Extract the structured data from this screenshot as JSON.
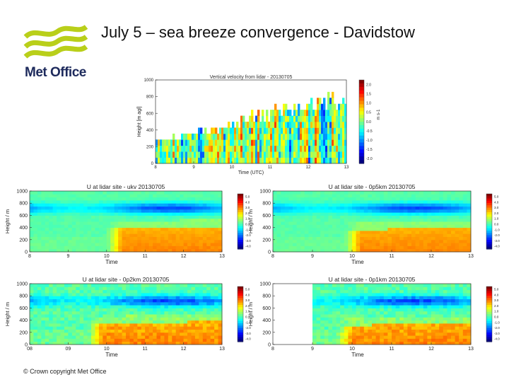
{
  "slide": {
    "title": "July 5 – sea breeze convergence - Davidstow",
    "logo_text": "Met Office",
    "copyright": "© Crown copyright   Met Office",
    "accent_color": "#b9cf1a",
    "brand_color": "#1d2a5c"
  },
  "chart_data": [
    {
      "id": "vertical-velocity",
      "type": "heatmap",
      "title": "Vertical velocity from lidar - 20130705",
      "xlabel": "Time (UTC)",
      "ylabel": "Height [m agl]",
      "x_ticks": [
        "8",
        "9",
        "10",
        "11",
        "12",
        "13"
      ],
      "x_range": [
        8,
        13
      ],
      "y_ticks": [
        "1000",
        "800",
        "600",
        "400",
        "200",
        "0"
      ],
      "y_range": [
        0,
        1000
      ],
      "colorbar_label": "m s-1",
      "colorbar_ticks": [
        "2.0",
        "1.5",
        "1.0",
        "0.5",
        "0.0",
        "-0.5",
        "-1.0",
        "-1.5",
        "-2.0"
      ],
      "colorbar_range": [
        -2.0,
        2.0
      ],
      "top_of_data_m": [
        260,
        300,
        360,
        420,
        480,
        560,
        610,
        650,
        690,
        740
      ],
      "top_of_data_at_time": [
        8.2,
        8.7,
        9.2,
        9.7,
        10.2,
        10.7,
        11.2,
        11.7,
        12.2,
        12.8
      ]
    },
    {
      "id": "u-ukv",
      "type": "heatmap",
      "title": "U at lidar site - ukv 20130705",
      "xlabel": "Time",
      "ylabel": "Height / m",
      "x_ticks": [
        "8",
        "9",
        "10",
        "11",
        "12",
        "13"
      ],
      "x_range": [
        8,
        13
      ],
      "y_ticks": [
        "1000",
        "800",
        "600",
        "400",
        "200",
        "0"
      ],
      "y_range": [
        0,
        1000
      ],
      "colorbar_ticks": [
        "5.0",
        "4.0",
        "3.0",
        "2.0",
        "1.0",
        "0.0",
        "-1.0",
        "-2.0",
        "-3.0",
        "-4.0"
      ],
      "colorbar_range": [
        -5,
        5
      ],
      "sea_breeze_onset": 10.0,
      "sea_breeze_top_m": 420
    },
    {
      "id": "u-0p5km",
      "type": "heatmap",
      "title": "U at lidar site - 0p5km 20130705",
      "xlabel": "Time",
      "ylabel": "Height / m",
      "x_ticks": [
        "8",
        "9",
        "10",
        "11",
        "12",
        "13"
      ],
      "x_range": [
        8,
        13
      ],
      "y_ticks": [
        "1000",
        "800",
        "600",
        "400",
        "200",
        "0"
      ],
      "y_range": [
        0,
        1000
      ],
      "colorbar_ticks": [
        "5.0",
        "4.0",
        "3.0",
        "2.0",
        "1.0",
        "0.0",
        "-1.0",
        "-2.0",
        "-3.0",
        "-4.0"
      ],
      "colorbar_range": [
        -5,
        5
      ],
      "sea_breeze_onset": 9.8,
      "sea_breeze_top_m": 400
    },
    {
      "id": "u-0p2km",
      "type": "heatmap",
      "title": "U at lidar site - 0p2km 20130705",
      "xlabel": "Time",
      "ylabel": "Height / m",
      "x_ticks": [
        "08",
        "09",
        "10",
        "11",
        "12",
        "13"
      ],
      "x_range": [
        8,
        13
      ],
      "y_ticks": [
        "1000",
        "800",
        "600",
        "400",
        "200",
        "0"
      ],
      "y_range": [
        0,
        1000
      ],
      "colorbar_ticks": [
        "5.0",
        "4.0",
        "3.0",
        "2.0",
        "1.0",
        "0.0",
        "-1.0",
        "-2.0",
        "-3.0",
        "-4.0"
      ],
      "colorbar_range": [
        -5,
        5
      ],
      "sea_breeze_onset": 9.5,
      "sea_breeze_top_m": 380
    },
    {
      "id": "u-0p1km",
      "type": "heatmap",
      "title": "U at lidar site - 0p1km 20130705",
      "xlabel": "Time",
      "ylabel": "Height / m",
      "x_ticks": [
        "8",
        "9",
        "10",
        "11",
        "12",
        "13"
      ],
      "x_range": [
        8,
        13
      ],
      "y_ticks": [
        "1000",
        "800",
        "600",
        "400",
        "200",
        "0"
      ],
      "y_range": [
        0,
        1000
      ],
      "colorbar_ticks": [
        "5.0",
        "4.0",
        "3.0",
        "2.0",
        "1.0",
        "0.0",
        "-1.0",
        "-2.0",
        "-3.0",
        "-4.0"
      ],
      "colorbar_range": [
        -5,
        5
      ],
      "data_start": 9.0,
      "sea_breeze_onset": 9.6,
      "sea_breeze_top_m": 350
    }
  ]
}
